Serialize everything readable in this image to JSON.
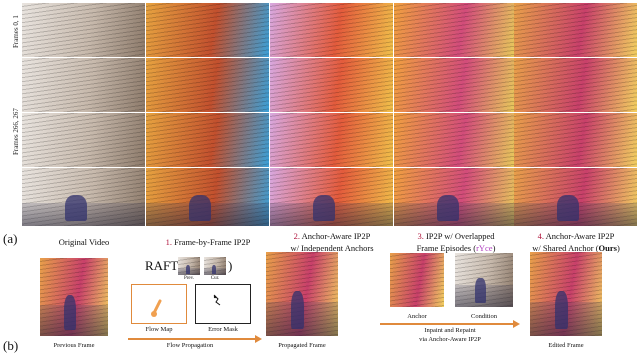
{
  "row_labels": [
    "Frames 0, 1",
    "Frames 266, 267"
  ],
  "panel_a_label": "(a)",
  "panel_b_label": "(b)",
  "columns": [
    {
      "num": "",
      "text": "Original Video",
      "line2": ""
    },
    {
      "num": "1.",
      "text": " Frame-by-Frame IP2P",
      "line2": ""
    },
    {
      "num": "2.",
      "text": " Anchor-Aware IP2P",
      "line2": "w/ Independent Anchors"
    },
    {
      "num": "3.",
      "text": " IP2P w/ Overlapped",
      "line2": "Frame Episodes (",
      "line2_colored": "rYce",
      "line2_end": ")"
    },
    {
      "num": "4.",
      "text": " Anchor-Aware IP2P",
      "line2": "w/  Shared Anchor (",
      "line2_bold": "Ours",
      "line2_end": ")"
    }
  ],
  "b": {
    "previous_frame": "Previous Frame",
    "raft_label": "RAFT(",
    "raft_close": ")",
    "prev_label": "Prev.",
    "cur_label": "Cur.",
    "flow_map": "Flow Map",
    "error_mask": "Error Mask",
    "flow_propagation": "Flow Propagation",
    "propagated_frame": "Propagated Frame",
    "anchor": "Anchor",
    "condition": "Condition",
    "inpaint_line1": "Inpaint and Repaint",
    "inpaint_line2": "via Anchor-Aware IP2P",
    "edited_frame": "Edited Frame"
  },
  "colors": {
    "accent_orange": "#e08a3c",
    "number_red": "#b0143c",
    "ryce_purple": "#b040c0"
  }
}
